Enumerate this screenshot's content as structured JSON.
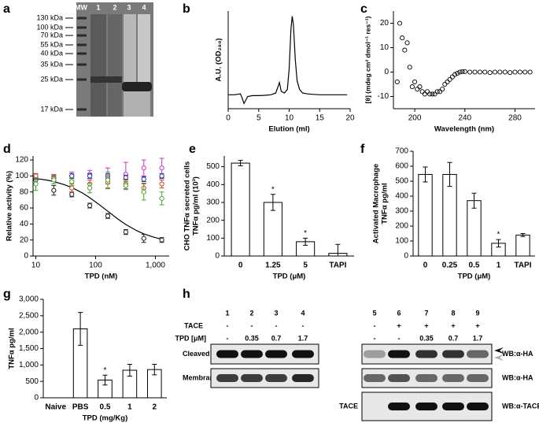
{
  "gel": {
    "panel": "a",
    "lanes": [
      "MW",
      "1",
      "2",
      "3",
      "4"
    ],
    "markers": [
      "130 kDa",
      "100 kDa",
      "70 kDa",
      "55 kDa",
      "40 kDa",
      "35 kDa",
      "25 kDa",
      "17 kDa"
    ]
  },
  "blot": {
    "panel": "h",
    "lanes": [
      "1",
      "2",
      "3",
      "4",
      "5",
      "6",
      "7",
      "8",
      "9"
    ],
    "row_headers": [
      "TACE",
      "TPD [μM]"
    ],
    "tace": [
      "-",
      "-",
      "-",
      "-",
      "-",
      "+",
      "+",
      "+",
      "+"
    ],
    "tpd": [
      "-",
      "0.35",
      "0.7",
      "1.7",
      "-",
      "-",
      "0.35",
      "0.7",
      "1.7"
    ],
    "rows": [
      {
        "label": "Cleaved Neuropilin-I",
        "probe": "WB:α-HA"
      },
      {
        "label": "Membrane Neuropilin-I",
        "probe": "WB:α-HA"
      },
      {
        "label": "TACE",
        "probe": "WB:α-TACE"
      }
    ]
  },
  "chart_data": [
    {
      "panel": "b",
      "type": "line",
      "color": "#000000",
      "x_label": "Elution (ml)",
      "y_label": "A.U. (OD₂₈₀)",
      "xlim": [
        0,
        20
      ],
      "ylim": [
        -8,
        48
      ],
      "xticks": [
        0,
        5,
        10,
        15,
        20
      ],
      "x": [
        0,
        1,
        2,
        2.3,
        2.6,
        2.9,
        3.2,
        4,
        5,
        6,
        7,
        7.8,
        8.2,
        8.4,
        8.7,
        9.2,
        9.7,
        10,
        10.3,
        10.5,
        10.7,
        11,
        11.3,
        11.7,
        12.2,
        13,
        14,
        15,
        16,
        17,
        18,
        19,
        19.5
      ],
      "values": [
        0,
        0,
        0.5,
        -2,
        -5,
        -3,
        -1,
        -0.5,
        -0.5,
        -0.3,
        0,
        1,
        5,
        7,
        2,
        1,
        3,
        15,
        38,
        45,
        40,
        20,
        8,
        3,
        1,
        0.5,
        0.2,
        0,
        0,
        0,
        0,
        0,
        0
      ]
    },
    {
      "panel": "c",
      "type": "scatter",
      "color": "#000000",
      "x_label": "Wavelength (nm)",
      "y_label": "[θ] (mdeg cm² dmol⁻¹ res⁻¹)",
      "xlim": [
        183,
        296
      ],
      "ylim": [
        -15,
        25
      ],
      "xticks": [
        200,
        240,
        280
      ],
      "yticks": [
        -10,
        0,
        10,
        20
      ],
      "x": [
        186,
        188,
        190,
        192,
        194,
        196,
        198,
        200,
        202,
        204,
        206,
        208,
        210,
        212,
        214,
        216,
        218,
        220,
        222,
        224,
        226,
        228,
        230,
        232,
        234,
        236,
        238,
        240,
        244,
        248,
        252,
        256,
        260,
        264,
        268,
        272,
        276,
        280,
        284,
        288,
        292
      ],
      "values": [
        -4,
        20,
        14,
        9,
        12,
        2,
        -6,
        -4,
        -7,
        -6,
        -8,
        -9,
        -8,
        -9,
        -9,
        -9,
        -8,
        -8,
        -7,
        -5,
        -4,
        -3,
        -2,
        -1,
        -0.5,
        0,
        0.2,
        0.2,
        0,
        0,
        0,
        0,
        -0.2,
        0,
        0,
        0,
        -0.2,
        0,
        0,
        0,
        0
      ]
    },
    {
      "panel": "d",
      "type": "dose",
      "x_label": "TPD (nM)",
      "y_label": "Relative activity (%)",
      "log_x": true,
      "xlim": [
        9,
        1700
      ],
      "ylim": [
        0,
        125
      ],
      "xticks": [
        10,
        100,
        {
          "value": 1000,
          "label": "1,000"
        }
      ],
      "yticks": [
        0,
        20,
        40,
        60,
        80,
        100,
        120
      ],
      "x": [
        10,
        20,
        40,
        80,
        160,
        320,
        640,
        1280
      ],
      "series": [
        {
          "color": "#222222",
          "values": [
            95,
            82,
            77,
            63,
            50,
            30,
            22,
            20
          ],
          "errors": [
            4,
            6,
            3,
            3,
            3,
            3,
            5,
            3
          ]
        },
        {
          "color": "#cc33cc",
          "values": [
            100,
            98,
            100,
            102,
            100,
            102,
            110,
            110
          ],
          "errors": [
            3,
            4,
            5,
            5,
            10,
            15,
            10,
            12
          ]
        },
        {
          "color": "#3333aa",
          "values": [
            98,
            97,
            100,
            100,
            100,
            98,
            96,
            100
          ],
          "errors": [
            2,
            3,
            3,
            3,
            3,
            3,
            3,
            3
          ]
        },
        {
          "color": "#cc4422",
          "values": [
            100,
            97,
            85,
            90,
            92,
            90,
            85,
            90
          ],
          "errors": [
            3,
            4,
            5,
            5,
            8,
            6,
            6,
            5
          ]
        },
        {
          "color": "#44aa33",
          "values": [
            90,
            95,
            93,
            85,
            95,
            88,
            80,
            72
          ],
          "errors": [
            8,
            5,
            5,
            6,
            10,
            5,
            10,
            8
          ]
        }
      ],
      "fit": {
        "color": "#000000",
        "x": [
          10,
          15,
          20,
          30,
          40,
          60,
          80,
          120,
          160,
          240,
          320,
          480,
          640,
          960,
          1280
        ],
        "values": [
          96.8,
          95,
          93,
          89.2,
          85.5,
          78.8,
          72.8,
          63.2,
          55.9,
          45.8,
          39.4,
          31.9,
          27.7,
          23.3,
          21
        ]
      }
    },
    {
      "panel": "e",
      "type": "bar",
      "x_label": "TPD (μM)",
      "y_label": [
        "CHO TNFα secreted cells",
        "TNFα pg/ml (10³)"
      ],
      "ylim": [
        0,
        560
      ],
      "yticks": [
        0,
        100,
        200,
        300,
        400,
        500
      ],
      "categories": [
        "0",
        "1.25",
        "5",
        "TAPI"
      ],
      "values": [
        520,
        300,
        80,
        15
      ],
      "errors": [
        15,
        45,
        20,
        50
      ],
      "stars": [
        null,
        "*",
        "*",
        null
      ]
    },
    {
      "panel": "f",
      "type": "bar",
      "x_label": "TPD (μM)",
      "y_label": [
        "Activated Macrophage",
        "TNFα pg/ml"
      ],
      "ylim": [
        0,
        700
      ],
      "yticks": [
        0,
        100,
        200,
        300,
        400,
        500,
        600,
        700
      ],
      "categories": [
        "0",
        "0.25",
        "0.5",
        "1",
        "TAPI"
      ],
      "values": [
        545,
        545,
        370,
        85,
        140
      ],
      "errors": [
        50,
        80,
        50,
        25,
        10
      ],
      "stars": [
        null,
        null,
        null,
        "*",
        null
      ]
    },
    {
      "panel": "g",
      "type": "bar",
      "x_label": "TPD (mg/Kg)",
      "y_label": "TNFα pg/ml",
      "ylim": [
        0,
        3000
      ],
      "yticks": [
        0,
        500,
        {
          "value": 1000,
          "label": "1,000"
        },
        {
          "value": 1500,
          "label": "1,500"
        },
        {
          "value": 2000,
          "label": "2,000"
        },
        {
          "value": 2500,
          "label": "2,500"
        },
        {
          "value": 3000,
          "label": "3,000"
        }
      ],
      "categories": [
        "Naive",
        "PBS",
        "0.5",
        "1",
        "2"
      ],
      "values": [
        null,
        2100,
        540,
        840,
        860
      ],
      "errors": [
        null,
        500,
        150,
        180,
        160
      ],
      "stars": [
        null,
        null,
        "*",
        null,
        null
      ]
    }
  ]
}
